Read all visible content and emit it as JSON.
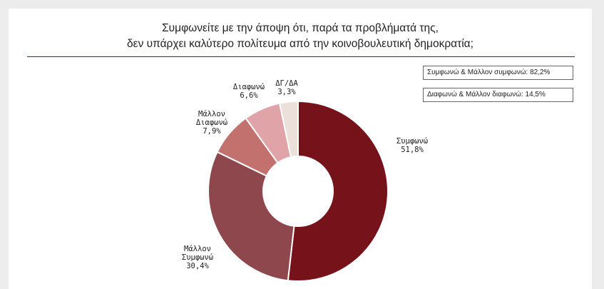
{
  "title": {
    "line1": "Συμφωνείτε με την άποψη ότι, παρά τα προβλήματά της,",
    "line2": "δεν υπάρχει καλύτερο πολίτευμα από την κοινοβουλευτική δημοκρατία;"
  },
  "summary": {
    "agree": "Συμφωνώ & Μάλλον συμφωνώ: 82,2%",
    "disagree": "Διαφωνώ & Μάλλον διαφωνώ: 14,5%"
  },
  "chart_data": {
    "type": "pie",
    "donut": true,
    "title": "Συμφωνείτε με την άποψη ότι, παρά τα προβλήματά της, δεν υπάρχει καλύτερο πολίτευμα από την κοινοβουλευτική δημοκρατία;",
    "slices": [
      {
        "label": [
          "Συμφωνώ"
        ],
        "value": 51.8,
        "value_text": "51,8%",
        "color": "#76121a"
      },
      {
        "label": [
          "Μάλλον",
          "Συμφωνώ"
        ],
        "value": 30.4,
        "value_text": "30,4%",
        "color": "#8e484d"
      },
      {
        "label": [
          "Μάλλον",
          "Διαφωνώ"
        ],
        "value": 7.9,
        "value_text": "7,9%",
        "color": "#c2716f"
      },
      {
        "label": [
          "Διαφωνώ"
        ],
        "value": 6.6,
        "value_text": "6,6%",
        "color": "#e0a3a8"
      },
      {
        "label": [
          "ΔΓ/ΔΑ"
        ],
        "value": 3.3,
        "value_text": "3,3%",
        "color": "#ebe1da"
      }
    ]
  }
}
